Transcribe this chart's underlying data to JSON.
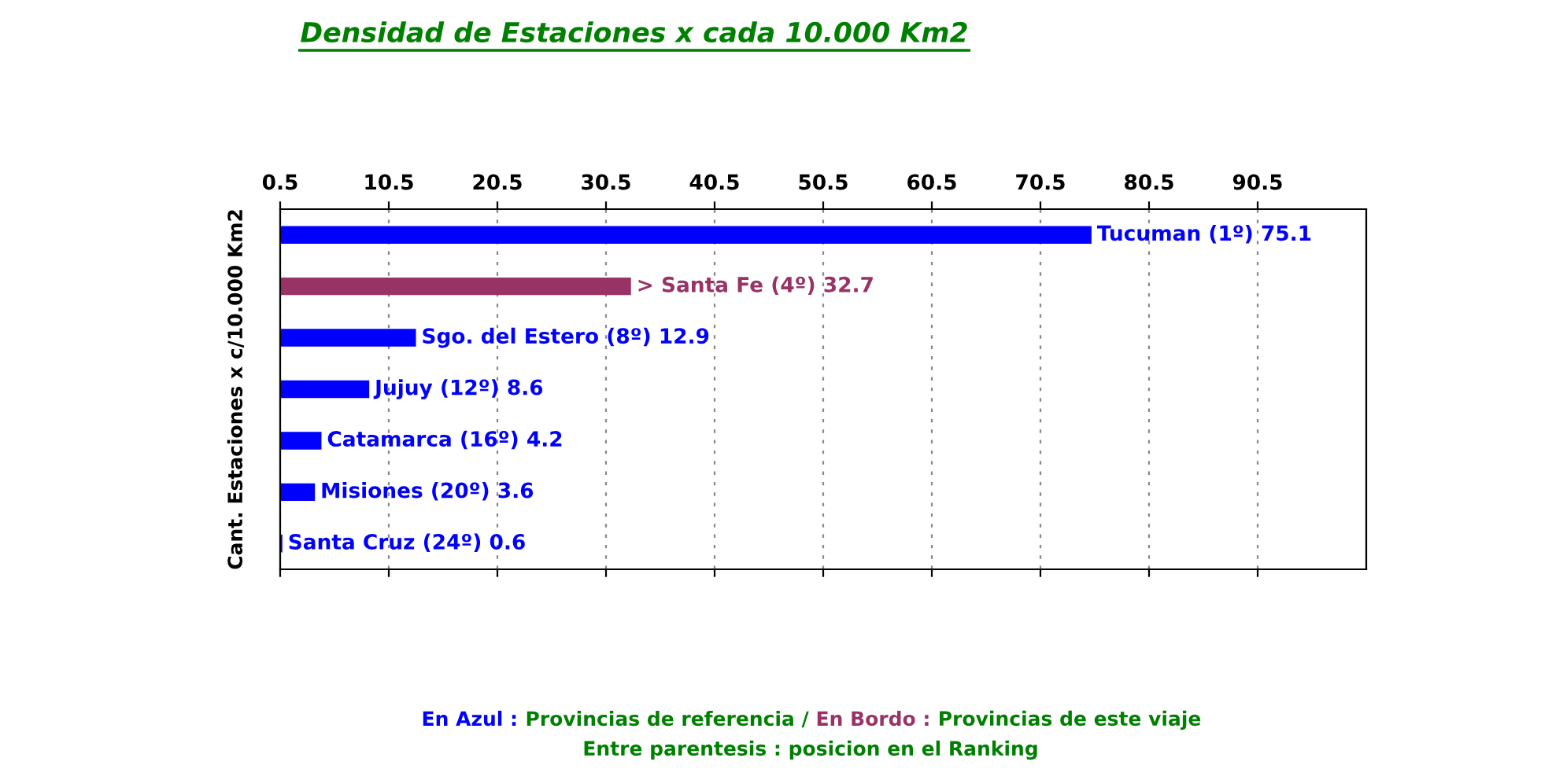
{
  "chart_data": {
    "type": "bar",
    "orientation": "horizontal",
    "title": "Densidad de Estaciones x cada 10.000 Km2",
    "ylabel": "Cant. Estaciones x c/10.000 Km2",
    "categories": [
      null,
      null,
      null,
      null,
      null,
      null,
      null
    ],
    "values": [
      75.1,
      32.7,
      12.9,
      8.6,
      4.2,
      3.6,
      0.6
    ],
    "value_labels": [
      "Tucuman (1º) 75.1",
      "> Santa Fe (4º) 32.7",
      "Sgo. del Estero (8º) 12.9",
      "Jujuy (12º) 8.6",
      "Catamarca (16º) 4.2",
      "Misiones (20º) 3.6",
      "Santa Cruz (24º) 0.6"
    ],
    "colors": [
      "#0000ff",
      "#993366",
      "#0000ff",
      "#0000ff",
      "#0000ff",
      "#0000ff",
      "#0000ff"
    ],
    "xlim": [
      0.5,
      100.5
    ],
    "xticks": [
      0.5,
      10.5,
      20.5,
      30.5,
      40.5,
      50.5,
      60.5,
      70.5,
      80.5,
      90.5
    ],
    "grid": "x",
    "legend": false,
    "annotations": [
      "En Azul :",
      "Provincias de referencia /",
      "En Bordo :",
      "Provincias de este viaje",
      "Entre parentesis : posicion en el Ranking"
    ]
  }
}
